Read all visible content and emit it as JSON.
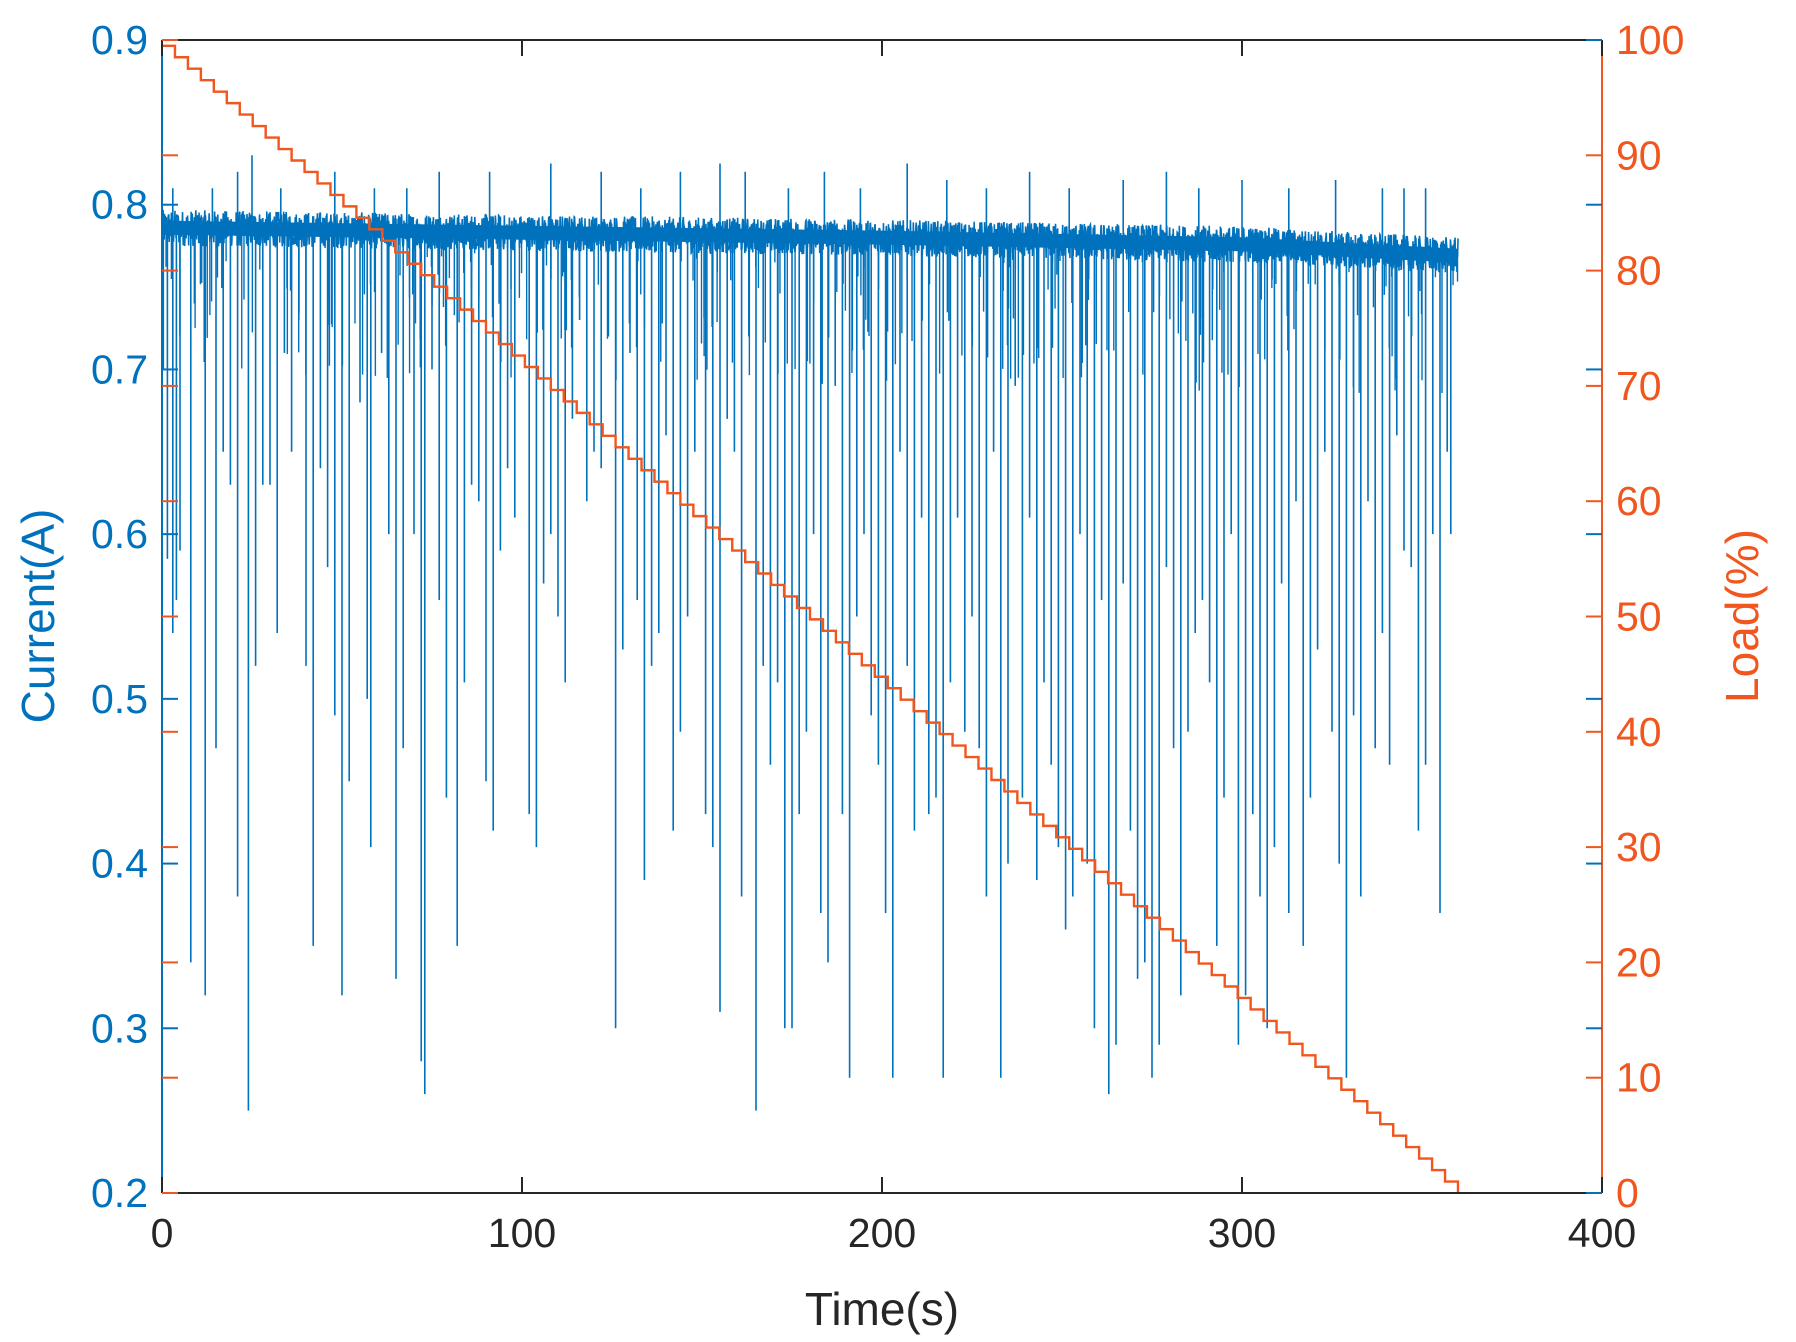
{
  "chart_data": {
    "type": "line",
    "title": "",
    "xlabel": "Time(s)",
    "ylabel_left": "Current(A)",
    "ylabel_right": "Load(%)",
    "xlim": [
      0,
      400
    ],
    "ylim_left": [
      0.2,
      0.9
    ],
    "ylim_right": [
      0,
      100
    ],
    "x_ticks": [
      "0",
      "100",
      "200",
      "300",
      "400"
    ],
    "y_left_ticks": [
      "0.2",
      "0.3",
      "0.4",
      "0.5",
      "0.6",
      "0.7",
      "0.8",
      "0.9"
    ],
    "y_right_ticks": [
      "0",
      "10",
      "20",
      "30",
      "40",
      "50",
      "60",
      "70",
      "80",
      "90",
      "100"
    ],
    "grid": false,
    "colors": {
      "current": "#0072BD",
      "load": "#F0561D",
      "axis_x": "#262626"
    },
    "series": [
      {
        "axis": "left",
        "baseline": [
          [
            0,
            0.786
          ],
          [
            100,
            0.783
          ],
          [
            200,
            0.78
          ],
          [
            300,
            0.776
          ],
          [
            360,
            0.769
          ]
        ],
        "spikes_down": [
          [
            1.5,
            0.585
          ],
          [
            3,
            0.54
          ],
          [
            4,
            0.56
          ],
          [
            5,
            0.59
          ],
          [
            8,
            0.34
          ],
          [
            9,
            0.74
          ],
          [
            12,
            0.32
          ],
          [
            15,
            0.47
          ],
          [
            17,
            0.65
          ],
          [
            19,
            0.63
          ],
          [
            21,
            0.38
          ],
          [
            24,
            0.25
          ],
          [
            26,
            0.52
          ],
          [
            28,
            0.63
          ],
          [
            30,
            0.63
          ],
          [
            32,
            0.54
          ],
          [
            34,
            0.71
          ],
          [
            36,
            0.65
          ],
          [
            38,
            0.73
          ],
          [
            40,
            0.52
          ],
          [
            42,
            0.35
          ],
          [
            44,
            0.64
          ],
          [
            46,
            0.58
          ],
          [
            48,
            0.49
          ],
          [
            50,
            0.32
          ],
          [
            52,
            0.45
          ],
          [
            55,
            0.68
          ],
          [
            57,
            0.5
          ],
          [
            58,
            0.41
          ],
          [
            61,
            0.71
          ],
          [
            63,
            0.6
          ],
          [
            65,
            0.33
          ],
          [
            67,
            0.47
          ],
          [
            70,
            0.6
          ],
          [
            72,
            0.28
          ],
          [
            73,
            0.26
          ],
          [
            75,
            0.7
          ],
          [
            77,
            0.56
          ],
          [
            79,
            0.44
          ],
          [
            82,
            0.35
          ],
          [
            84,
            0.51
          ],
          [
            86,
            0.63
          ],
          [
            88,
            0.62
          ],
          [
            90,
            0.45
          ],
          [
            92,
            0.42
          ],
          [
            94,
            0.59
          ],
          [
            96,
            0.64
          ],
          [
            98,
            0.61
          ],
          [
            102,
            0.43
          ],
          [
            104,
            0.41
          ],
          [
            106,
            0.57
          ],
          [
            108,
            0.6
          ],
          [
            110,
            0.55
          ],
          [
            112,
            0.51
          ],
          [
            114,
            0.67
          ],
          [
            116,
            0.73
          ],
          [
            118,
            0.62
          ],
          [
            120,
            0.65
          ],
          [
            122,
            0.64
          ],
          [
            124,
            0.72
          ],
          [
            126,
            0.3
          ],
          [
            128,
            0.53
          ],
          [
            130,
            0.71
          ],
          [
            132,
            0.56
          ],
          [
            134,
            0.39
          ],
          [
            136,
            0.52
          ],
          [
            138,
            0.54
          ],
          [
            140,
            0.66
          ],
          [
            142,
            0.42
          ],
          [
            144,
            0.48
          ],
          [
            146,
            0.55
          ],
          [
            148,
            0.65
          ],
          [
            151,
            0.43
          ],
          [
            153,
            0.41
          ],
          [
            155,
            0.31
          ],
          [
            157,
            0.67
          ],
          [
            159,
            0.65
          ],
          [
            161,
            0.38
          ],
          [
            163,
            0.72
          ],
          [
            165,
            0.25
          ],
          [
            167,
            0.52
          ],
          [
            169,
            0.46
          ],
          [
            171,
            0.51
          ],
          [
            173,
            0.3
          ],
          [
            175,
            0.3
          ],
          [
            177,
            0.43
          ],
          [
            179,
            0.48
          ],
          [
            181,
            0.6
          ],
          [
            183,
            0.37
          ],
          [
            185,
            0.34
          ],
          [
            187,
            0.69
          ],
          [
            189,
            0.43
          ],
          [
            191,
            0.27
          ],
          [
            193,
            0.55
          ],
          [
            195,
            0.6
          ],
          [
            197,
            0.49
          ],
          [
            199,
            0.46
          ],
          [
            201,
            0.37
          ],
          [
            203,
            0.27
          ],
          [
            205,
            0.65
          ],
          [
            207,
            0.52
          ],
          [
            209,
            0.42
          ],
          [
            211,
            0.61
          ],
          [
            213,
            0.43
          ],
          [
            215,
            0.44
          ],
          [
            217,
            0.27
          ],
          [
            219,
            0.51
          ],
          [
            221,
            0.61
          ],
          [
            223,
            0.48
          ],
          [
            225,
            0.55
          ],
          [
            227,
            0.47
          ],
          [
            229,
            0.38
          ],
          [
            231,
            0.65
          ],
          [
            233,
            0.27
          ],
          [
            235,
            0.4
          ],
          [
            237,
            0.69
          ],
          [
            239,
            0.44
          ],
          [
            241,
            0.61
          ],
          [
            243,
            0.39
          ],
          [
            245,
            0.51
          ],
          [
            247,
            0.46
          ],
          [
            249,
            0.41
          ],
          [
            251,
            0.36
          ],
          [
            253,
            0.38
          ],
          [
            255,
            0.6
          ],
          [
            257,
            0.4
          ],
          [
            259,
            0.3
          ],
          [
            261,
            0.56
          ],
          [
            263,
            0.26
          ],
          [
            265,
            0.29
          ],
          [
            267,
            0.57
          ],
          [
            269,
            0.42
          ],
          [
            271,
            0.33
          ],
          [
            273,
            0.34
          ],
          [
            275,
            0.27
          ],
          [
            277,
            0.29
          ],
          [
            279,
            0.58
          ],
          [
            281,
            0.47
          ],
          [
            283,
            0.32
          ],
          [
            285,
            0.48
          ],
          [
            287,
            0.54
          ],
          [
            289,
            0.56
          ],
          [
            291,
            0.51
          ],
          [
            293,
            0.35
          ],
          [
            295,
            0.44
          ],
          [
            297,
            0.6
          ],
          [
            299,
            0.29
          ],
          [
            301,
            0.32
          ],
          [
            303,
            0.43
          ],
          [
            305,
            0.38
          ],
          [
            307,
            0.3
          ],
          [
            309,
            0.41
          ],
          [
            311,
            0.57
          ],
          [
            313,
            0.37
          ],
          [
            315,
            0.62
          ],
          [
            317,
            0.35
          ],
          [
            319,
            0.44
          ],
          [
            321,
            0.53
          ],
          [
            323,
            0.65
          ],
          [
            325,
            0.48
          ],
          [
            327,
            0.4
          ],
          [
            329,
            0.27
          ],
          [
            331,
            0.49
          ],
          [
            333,
            0.38
          ],
          [
            335,
            0.62
          ],
          [
            337,
            0.47
          ],
          [
            339,
            0.54
          ],
          [
            341,
            0.46
          ],
          [
            343,
            0.66
          ],
          [
            345,
            0.59
          ],
          [
            347,
            0.58
          ],
          [
            349,
            0.42
          ],
          [
            351,
            0.46
          ],
          [
            353,
            0.6
          ],
          [
            355,
            0.37
          ],
          [
            357,
            0.65
          ],
          [
            358,
            0.6
          ]
        ],
        "spikes_up": [
          [
            3,
            0.81
          ],
          [
            14,
            0.81
          ],
          [
            21,
            0.82
          ],
          [
            25,
            0.83
          ],
          [
            33,
            0.81
          ],
          [
            48,
            0.82
          ],
          [
            59,
            0.81
          ],
          [
            68,
            0.81
          ],
          [
            77,
            0.82
          ],
          [
            91,
            0.82
          ],
          [
            108,
            0.825
          ],
          [
            122,
            0.82
          ],
          [
            133,
            0.81
          ],
          [
            144,
            0.82
          ],
          [
            155,
            0.825
          ],
          [
            162,
            0.82
          ],
          [
            174,
            0.81
          ],
          [
            184,
            0.82
          ],
          [
            194,
            0.81
          ],
          [
            207,
            0.825
          ],
          [
            218,
            0.815
          ],
          [
            229,
            0.81
          ],
          [
            241,
            0.82
          ],
          [
            252,
            0.81
          ],
          [
            267,
            0.815
          ],
          [
            279,
            0.82
          ],
          [
            288,
            0.81
          ],
          [
            300,
            0.815
          ],
          [
            313,
            0.81
          ],
          [
            326,
            0.815
          ],
          [
            339,
            0.81
          ],
          [
            345,
            0.81
          ],
          [
            351,
            0.81
          ]
        ]
      },
      {
        "axis": "right",
        "x_start": 0,
        "x_end": 360,
        "y_start": 99.5,
        "y_end": 0,
        "steps": 100
      }
    ]
  }
}
